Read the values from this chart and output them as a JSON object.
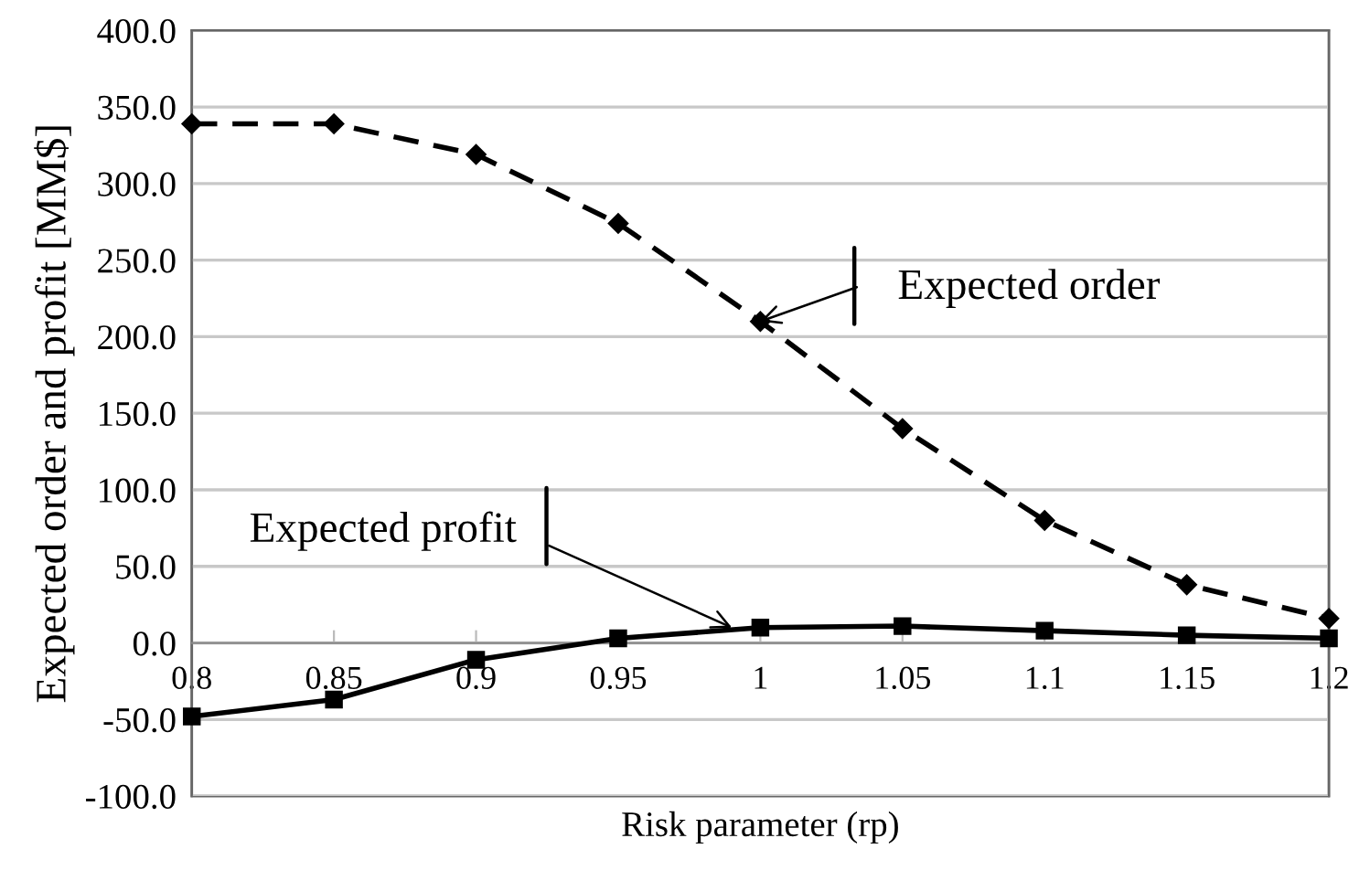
{
  "chart_data": {
    "type": "line",
    "xlabel": "Risk parameter (rp)",
    "ylabel": "Expected order and profit [MM$]",
    "x": [
      0.8,
      0.85,
      0.9,
      0.95,
      1.0,
      1.05,
      1.1,
      1.15,
      1.2
    ],
    "series": [
      {
        "color": "#000000",
        "marker": "diamond",
        "line_style": "dashed",
        "values": [
          339,
          339,
          319,
          274,
          210,
          140,
          80,
          38,
          16
        ]
      },
      {
        "color": "#000000",
        "marker": "square",
        "line_style": "solid",
        "values": [
          -48,
          -37,
          -11,
          3,
          10,
          11,
          8,
          5,
          3
        ]
      }
    ],
    "annotations": [
      {
        "text": "Expected order",
        "x": 1.0,
        "y": 210
      },
      {
        "text": "Expected profit",
        "x": 0.99,
        "y": 10
      }
    ],
    "xlim": [
      0.8,
      1.2
    ],
    "xticks": [
      0.8,
      0.85,
      0.9,
      0.95,
      1,
      1.05,
      1.1,
      1.15,
      1.2
    ],
    "ylim": [
      -100,
      400
    ],
    "yticks": [
      {
        "value": -100,
        "label": "-100.0"
      },
      {
        "value": -50,
        "label": "-50.0"
      },
      {
        "value": 0,
        "label": "0.0"
      },
      {
        "value": 50,
        "label": "50.0"
      },
      {
        "value": 100,
        "label": "100.0"
      },
      {
        "value": 150,
        "label": "150.0"
      },
      {
        "value": 200,
        "label": "200.0"
      },
      {
        "value": 250,
        "label": "250.0"
      },
      {
        "value": 300,
        "label": "300.0"
      },
      {
        "value": 350,
        "label": "350.0"
      },
      {
        "value": 400,
        "label": "400.0"
      }
    ],
    "grid": "y"
  }
}
